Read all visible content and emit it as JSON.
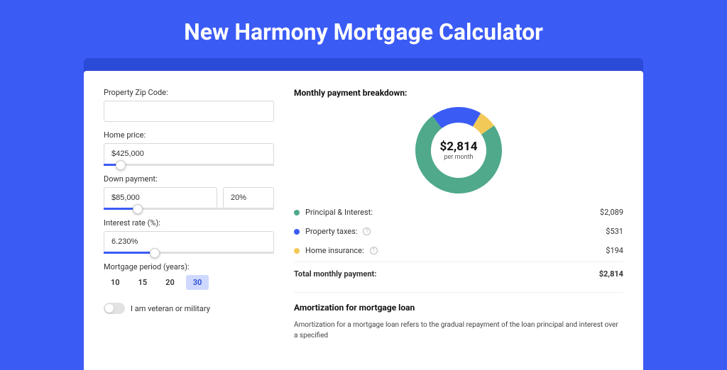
{
  "page": {
    "title": "New Harmony Mortgage Calculator"
  },
  "form": {
    "zip": {
      "label": "Property Zip Code:",
      "value": ""
    },
    "home_price": {
      "label": "Home price:",
      "value": "$425,000",
      "slider_pct": 10
    },
    "down_payment": {
      "label": "Down payment:",
      "value": "$85,000",
      "pct_value": "20%",
      "slider_pct": 20
    },
    "interest_rate": {
      "label": "Interest rate (%):",
      "value": "6.230%",
      "slider_pct": 30
    },
    "mortgage_period": {
      "label": "Mortgage period (years):",
      "options": [
        "10",
        "15",
        "20",
        "30"
      ],
      "selected": "30"
    },
    "veteran": {
      "label": "I am veteran or military",
      "checked": false
    }
  },
  "breakdown": {
    "title": "Monthly payment breakdown:",
    "center_amount": "$2,814",
    "center_label": "per month",
    "donut": {
      "segments": [
        {
          "key": "principal_interest",
          "color": "#4fa98a",
          "pct": 74.2
        },
        {
          "key": "property_taxes",
          "color": "#3b5bf5",
          "pct": 18.9
        },
        {
          "key": "home_insurance",
          "color": "#f2c957",
          "pct": 6.9
        }
      ],
      "radius": 50,
      "stroke_width": 22,
      "background_color": "#ffffff"
    },
    "items": [
      {
        "label": "Principal & Interest:",
        "color": "#4fa98a",
        "amount": "$2,089",
        "info": false
      },
      {
        "label": "Property taxes:",
        "color": "#3b5bf5",
        "amount": "$531",
        "info": true
      },
      {
        "label": "Home insurance:",
        "color": "#f2c957",
        "amount": "$194",
        "info": true
      }
    ],
    "total": {
      "label": "Total monthly payment:",
      "amount": "$2,814"
    }
  },
  "amortization": {
    "title": "Amortization for mortgage loan",
    "text": "Amortization for a mortgage loan refers to the gradual repayment of the loan principal and interest over a specified"
  }
}
